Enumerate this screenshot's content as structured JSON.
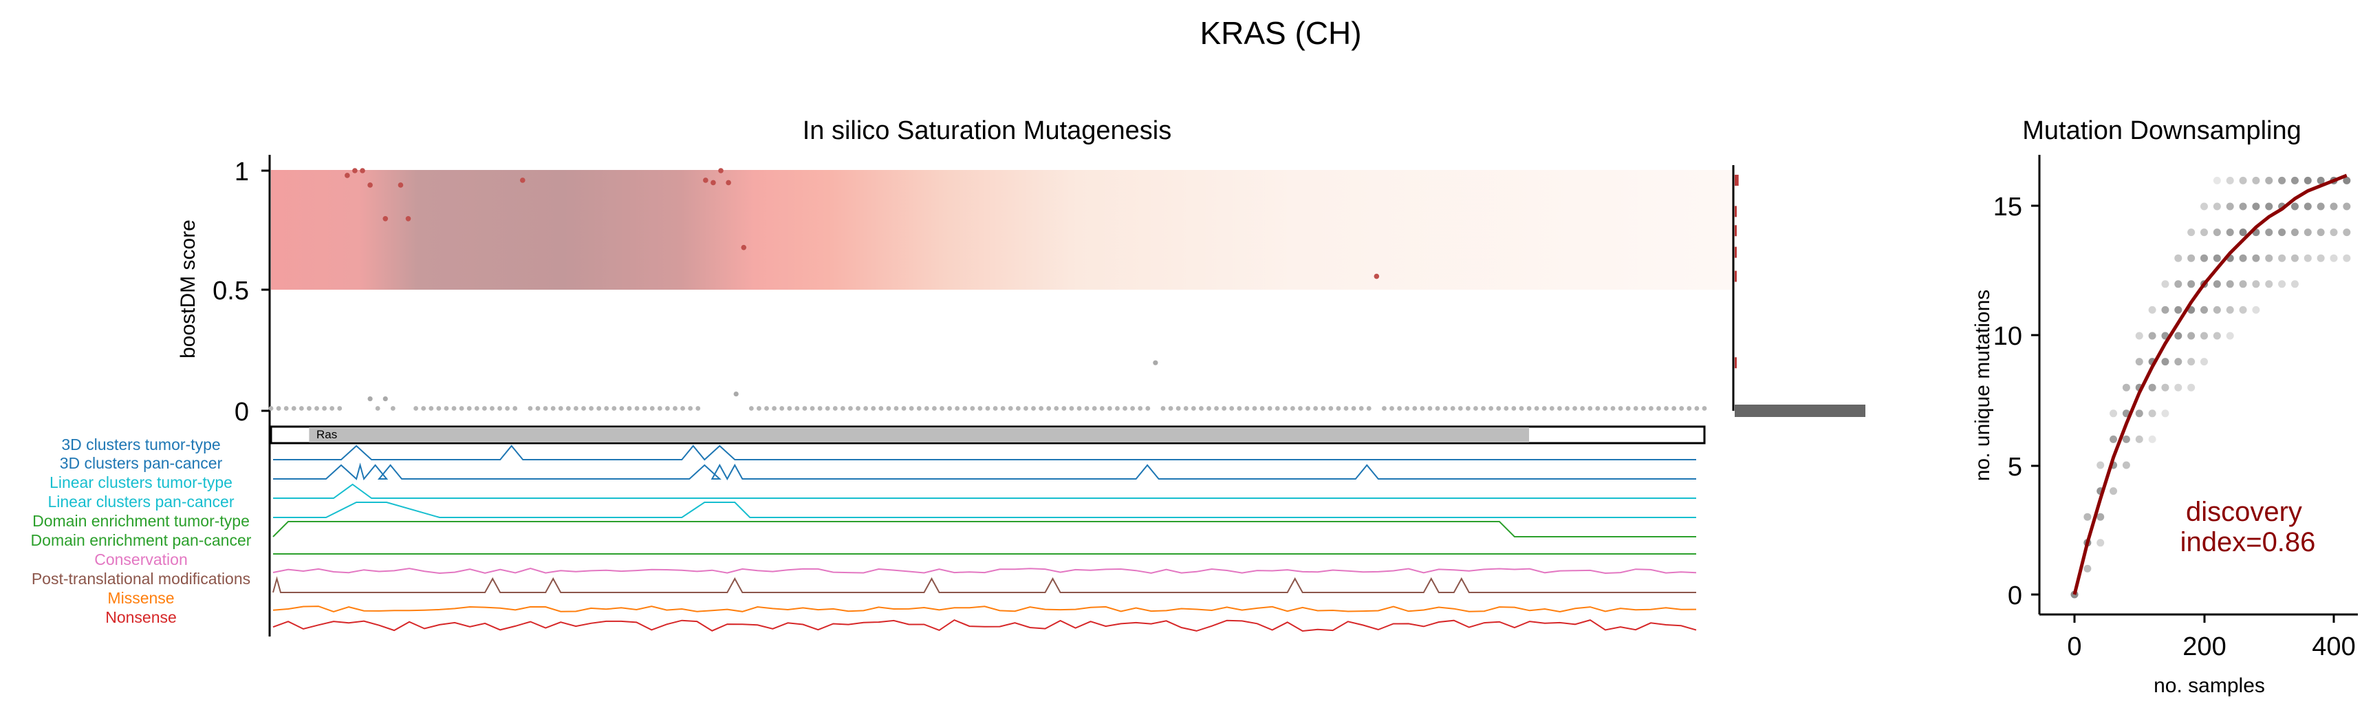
{
  "figure": {
    "title": "KRAS (CH)"
  },
  "colors": {
    "drivers_red": "#b22222",
    "gray_points": "#a9a9a9",
    "dark_red": "#8b0000",
    "band_salmon": "#f4a29e",
    "band_mauve": "#c49a9b",
    "domain_gray": "#bdbdbd",
    "side_bar_gray": "#666666"
  },
  "chart_data": [
    {
      "type": "scatter",
      "title": "In silico Saturation Mutagenesis",
      "ylabel": "boostDM score",
      "yticks": [
        "0",
        "0.5",
        "1"
      ],
      "ylim": [
        0,
        1.06
      ],
      "xlim": [
        1,
        189
      ],
      "protein_length": 189,
      "background_band": {
        "y_range": [
          0.5,
          1.0
        ],
        "shading": "salmon → mauve (~pos 10–63) → salmon → fading to white after ~pos 90"
      },
      "driver_points": [
        {
          "x": 11,
          "y": 0.98
        },
        {
          "x": 12,
          "y": 1.0
        },
        {
          "x": 13,
          "y": 1.0
        },
        {
          "x": 14,
          "y": 0.94
        },
        {
          "x": 16,
          "y": 0.8
        },
        {
          "x": 18,
          "y": 0.94
        },
        {
          "x": 19,
          "y": 0.8
        },
        {
          "x": 34,
          "y": 0.96
        },
        {
          "x": 58,
          "y": 0.96
        },
        {
          "x": 59,
          "y": 0.95
        },
        {
          "x": 60,
          "y": 1.0
        },
        {
          "x": 61,
          "y": 0.95
        },
        {
          "x": 63,
          "y": 0.68
        },
        {
          "x": 146,
          "y": 0.56
        }
      ],
      "passenger_points": [
        {
          "x": 14,
          "y": 0.05
        },
        {
          "x": 16,
          "y": 0.05
        },
        {
          "x": 62,
          "y": 0.07
        },
        {
          "x": 117,
          "y": 0.2
        }
      ],
      "baseline_y": 0.01,
      "domains": [
        {
          "name": "Ras",
          "start": 6,
          "end": 166
        }
      ],
      "side_histogram": {
        "description": "horizontal histogram of score distribution",
        "bins": [
          {
            "y": 0.96,
            "value": 0.03
          },
          {
            "y": 0.83,
            "value": 0.01
          },
          {
            "y": 0.75,
            "value": 0.01
          },
          {
            "y": 0.66,
            "value": 0.01
          },
          {
            "y": 0.56,
            "value": 0.01
          },
          {
            "y": 0.2,
            "value": 0.01
          },
          {
            "y": 0.0,
            "value": 1.0
          }
        ]
      },
      "feature_tracks": [
        {
          "name": "3D clusters tumor-type",
          "color": "#1f77b4",
          "peaks": [
            [
              10,
              14
            ],
            [
              31,
              34
            ],
            [
              55,
              58
            ],
            [
              58,
              62
            ]
          ]
        },
        {
          "name": "3D clusters pan-cancer",
          "color": "#1f77b4",
          "peaks": [
            [
              8,
              12
            ],
            [
              12,
              13
            ],
            [
              13,
              16
            ],
            [
              15,
              18
            ],
            [
              56,
              60
            ],
            [
              59,
              61
            ],
            [
              61,
              63
            ],
            [
              115,
              118
            ],
            [
              144,
              147
            ]
          ]
        },
        {
          "name": "Linear clusters tumor-type",
          "color": "#17becf",
          "peaks": [
            [
              9,
              14
            ]
          ]
        },
        {
          "name": "Linear clusters pan-cancer",
          "color": "#17becf",
          "plateaus": [
            [
              8,
              12,
              16,
              23
            ],
            [
              55,
              58,
              62,
              64
            ]
          ]
        },
        {
          "name": "Domain enrichment tumor-type",
          "color": "#2ca02c",
          "plateaus": [
            [
              1,
              3,
              163,
              165
            ]
          ]
        },
        {
          "name": "Domain enrichment pan-cancer",
          "color": "#2ca02c",
          "flat": true
        },
        {
          "name": "Conservation",
          "color": "#e377c2",
          "wiggle": true
        },
        {
          "name": "Post-translational modifications",
          "color": "#8c564b",
          "peaks": [
            [
              1,
              2
            ],
            [
              29,
              31
            ],
            [
              37,
              39
            ],
            [
              61,
              63
            ],
            [
              87,
              89
            ],
            [
              103,
              105
            ],
            [
              135,
              137
            ],
            [
              153,
              155
            ],
            [
              157,
              159
            ]
          ]
        },
        {
          "name": "Missense",
          "color": "#ff7f0e",
          "wiggle": true
        },
        {
          "name": "Nonsense",
          "color": "#d62728",
          "wiggle": true
        }
      ]
    },
    {
      "type": "scatter",
      "title": "Mutation Downsampling",
      "xlabel": "no. samples",
      "ylabel": "no. unique mutations",
      "xlim": [
        -25,
        425
      ],
      "ylim": [
        -1,
        17
      ],
      "xticks": [
        0,
        200,
        400
      ],
      "yticks": [
        0,
        5,
        10,
        15
      ],
      "samples_step": 20,
      "samples_max": 420,
      "fit_curve": [
        [
          0,
          0
        ],
        [
          20,
          2.0
        ],
        [
          40,
          3.7
        ],
        [
          60,
          5.3
        ],
        [
          80,
          6.6
        ],
        [
          100,
          7.8
        ],
        [
          120,
          8.8
        ],
        [
          140,
          9.7
        ],
        [
          160,
          10.5
        ],
        [
          180,
          11.3
        ],
        [
          200,
          12.0
        ],
        [
          220,
          12.6
        ],
        [
          240,
          13.2
        ],
        [
          260,
          13.7
        ],
        [
          280,
          14.2
        ],
        [
          300,
          14.6
        ],
        [
          320,
          14.9
        ],
        [
          340,
          15.3
        ],
        [
          360,
          15.6
        ],
        [
          380,
          15.8
        ],
        [
          400,
          16.0
        ],
        [
          420,
          16.2
        ]
      ],
      "annotation": "discovery\nindex=0.86",
      "annotation_lines": [
        "discovery",
        "index=0.86"
      ]
    }
  ]
}
